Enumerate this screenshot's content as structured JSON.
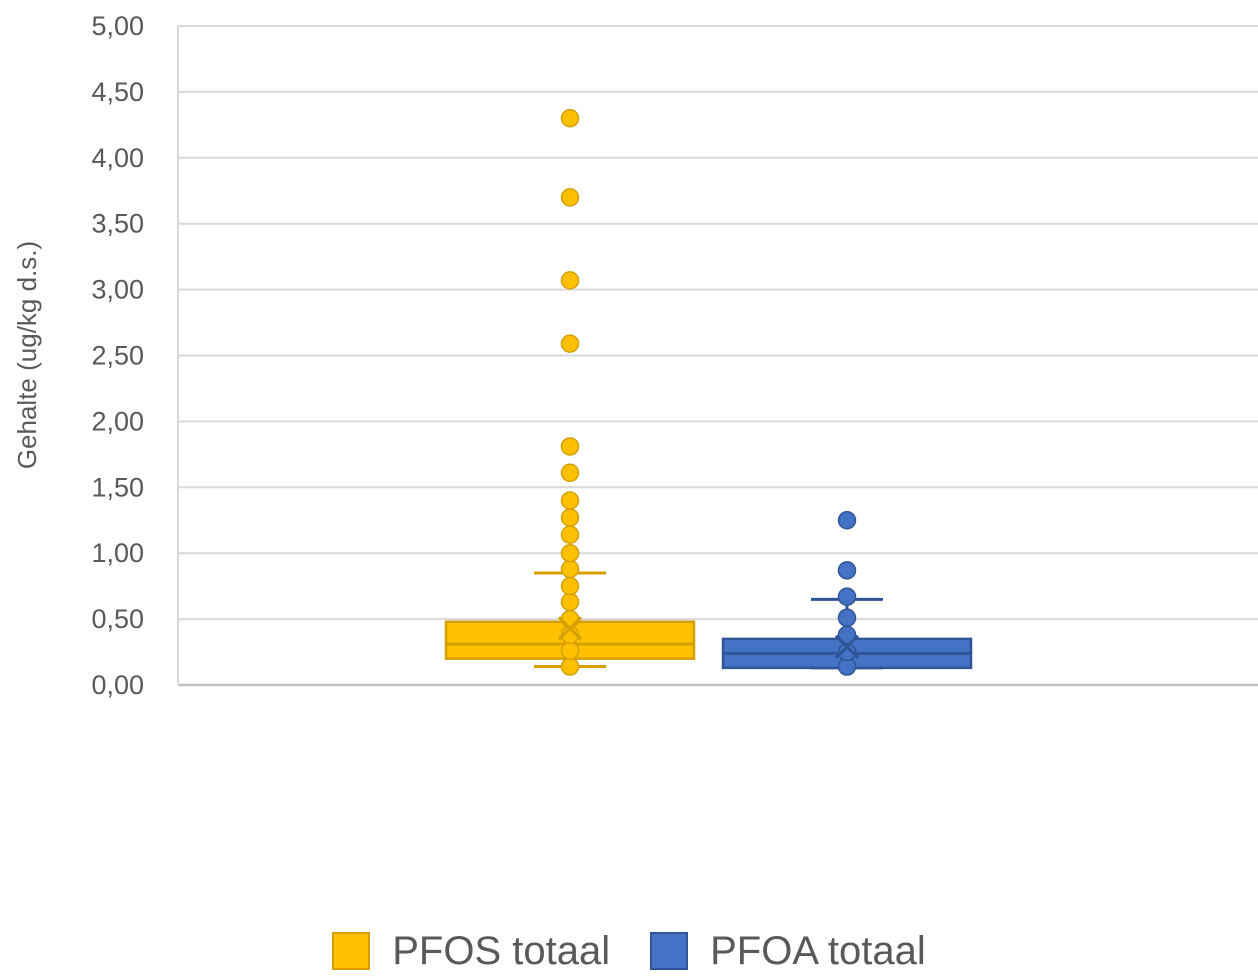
{
  "chart_data": {
    "type": "boxplot",
    "title": "",
    "xlabel": "",
    "ylabel": "Gehalte (ug/kg d.s.)",
    "ylim": [
      0,
      5
    ],
    "yticks": [
      "0,00",
      "0,50",
      "1,00",
      "1,50",
      "2,00",
      "2,50",
      "3,00",
      "3,50",
      "4,00",
      "4,50",
      "5,00"
    ],
    "grid": true,
    "legend_position": "bottom",
    "series": [
      {
        "name": "PFOS totaal",
        "color": "#FFC000",
        "edge_color": "#D4A000",
        "min": 0.14,
        "q1": 0.2,
        "median": 0.31,
        "q3": 0.48,
        "max": 0.85,
        "mean": 0.43,
        "points": [
          0.14,
          0.26,
          0.38,
          0.5,
          0.63,
          0.75,
          0.88,
          1.0,
          1.14,
          1.27,
          1.4,
          1.61,
          1.81,
          2.59,
          3.07,
          3.7,
          4.3
        ]
      },
      {
        "name": "PFOA totaal",
        "color": "#4472C4",
        "edge_color": "#2F5597",
        "min": 0.13,
        "q1": 0.13,
        "median": 0.24,
        "q3": 0.35,
        "max": 0.65,
        "mean": 0.29,
        "points": [
          0.14,
          0.25,
          0.38,
          0.51,
          0.67,
          0.87,
          1.25
        ]
      }
    ]
  }
}
